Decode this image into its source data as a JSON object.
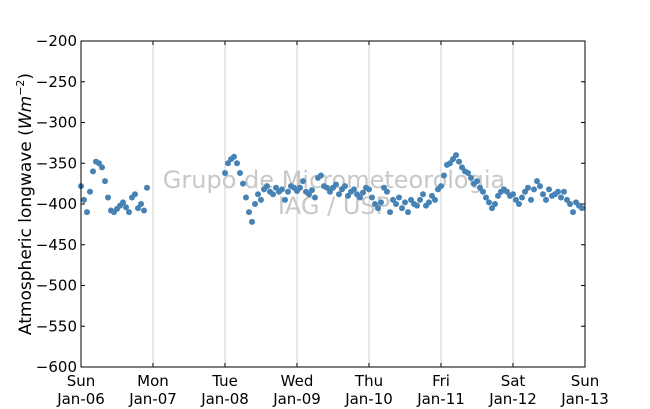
{
  "chart_data": {
    "type": "scatter",
    "title": "",
    "xlabel": "",
    "ylabel": "Atmospheric longwave (Wm⁻²)",
    "ylabel_parts": {
      "text": "Atmospheric longwave",
      "unit_open": "(",
      "unit_W": "W",
      "unit_m": "m",
      "unit_exp": "−2",
      "unit_close": ")"
    },
    "xlim": [
      "2013-01-06",
      "2013-01-13"
    ],
    "ylim": [
      -600,
      -200
    ],
    "y_ticks": [
      -600,
      -550,
      -500,
      -450,
      -400,
      -350,
      -300,
      -250,
      -200
    ],
    "y_tick_labels": [
      "−600",
      "−550",
      "−500",
      "−450",
      "−400",
      "−350",
      "−300",
      "−250",
      "−200"
    ],
    "x_ticks": [
      {
        "date": "2013-01-06",
        "day": "Sun",
        "date_label": "Jan-06"
      },
      {
        "date": "2013-01-07",
        "day": "Mon",
        "date_label": "Jan-07"
      },
      {
        "date": "2013-01-08",
        "day": "Tue",
        "date_label": "Jan-08"
      },
      {
        "date": "2013-01-09",
        "day": "Wed",
        "date_label": "Jan-09"
      },
      {
        "date": "2013-01-10",
        "day": "Thu",
        "date_label": "Jan-10"
      },
      {
        "date": "2013-01-11",
        "day": "Fri",
        "date_label": "Jan-11"
      },
      {
        "date": "2013-01-12",
        "day": "Sat",
        "date_label": "Jan-12"
      },
      {
        "date": "2013-01-13",
        "day": "Sun",
        "date_label": "Jan-13"
      }
    ],
    "grid": "vertical",
    "series": [
      {
        "color": "#4682b4",
        "points": [
          [
            "2013-01-06 00:00",
            -378
          ],
          [
            "2013-01-06 01:00",
            -395
          ],
          [
            "2013-01-06 02:00",
            -410
          ],
          [
            "2013-01-06 03:00",
            -385
          ],
          [
            "2013-01-06 04:00",
            -360
          ],
          [
            "2013-01-06 05:00",
            -348
          ],
          [
            "2013-01-06 06:00",
            -350
          ],
          [
            "2013-01-06 07:00",
            -355
          ],
          [
            "2013-01-06 08:00",
            -372
          ],
          [
            "2013-01-06 09:00",
            -392
          ],
          [
            "2013-01-06 10:00",
            -408
          ],
          [
            "2013-01-06 11:00",
            -410
          ],
          [
            "2013-01-06 12:00",
            -406
          ],
          [
            "2013-01-06 13:00",
            -402
          ],
          [
            "2013-01-06 14:00",
            -398
          ],
          [
            "2013-01-06 15:00",
            -404
          ],
          [
            "2013-01-06 16:00",
            -410
          ],
          [
            "2013-01-06 17:00",
            -392
          ],
          [
            "2013-01-06 18:00",
            -388
          ],
          [
            "2013-01-06 19:00",
            -405
          ],
          [
            "2013-01-06 20:00",
            -400
          ],
          [
            "2013-01-06 21:00",
            -408
          ],
          [
            "2013-01-06 22:00",
            -380
          ],
          [
            "2013-01-08 00:00",
            -362
          ],
          [
            "2013-01-08 01:00",
            -350
          ],
          [
            "2013-01-08 02:00",
            -345
          ],
          [
            "2013-01-08 03:00",
            -342
          ],
          [
            "2013-01-08 04:00",
            -350
          ],
          [
            "2013-01-08 05:00",
            -362
          ],
          [
            "2013-01-08 06:00",
            -375
          ],
          [
            "2013-01-08 07:00",
            -392
          ],
          [
            "2013-01-08 08:00",
            -410
          ],
          [
            "2013-01-08 09:00",
            -422
          ],
          [
            "2013-01-08 10:00",
            -400
          ],
          [
            "2013-01-08 11:00",
            -388
          ],
          [
            "2013-01-08 12:00",
            -395
          ],
          [
            "2013-01-08 13:00",
            -382
          ],
          [
            "2013-01-08 14:00",
            -378
          ],
          [
            "2013-01-08 15:00",
            -385
          ],
          [
            "2013-01-08 16:00",
            -388
          ],
          [
            "2013-01-08 17:00",
            -380
          ],
          [
            "2013-01-08 18:00",
            -385
          ],
          [
            "2013-01-08 19:00",
            -382
          ],
          [
            "2013-01-08 20:00",
            -395
          ],
          [
            "2013-01-08 21:00",
            -385
          ],
          [
            "2013-01-08 22:00",
            -378
          ],
          [
            "2013-01-08 23:00",
            -380
          ],
          [
            "2013-01-09 00:00",
            -384
          ],
          [
            "2013-01-09 01:00",
            -380
          ],
          [
            "2013-01-09 02:00",
            -372
          ],
          [
            "2013-01-09 03:00",
            -385
          ],
          [
            "2013-01-09 04:00",
            -388
          ],
          [
            "2013-01-09 05:00",
            -383
          ],
          [
            "2013-01-09 06:00",
            -392
          ],
          [
            "2013-01-09 07:00",
            -368
          ],
          [
            "2013-01-09 08:00",
            -365
          ],
          [
            "2013-01-09 09:00",
            -378
          ],
          [
            "2013-01-09 10:00",
            -380
          ],
          [
            "2013-01-09 11:00",
            -385
          ],
          [
            "2013-01-09 12:00",
            -380
          ],
          [
            "2013-01-09 13:00",
            -376
          ],
          [
            "2013-01-09 14:00",
            -388
          ],
          [
            "2013-01-09 15:00",
            -382
          ],
          [
            "2013-01-09 16:00",
            -378
          ],
          [
            "2013-01-09 17:00",
            -390
          ],
          [
            "2013-01-09 18:00",
            -385
          ],
          [
            "2013-01-09 19:00",
            -382
          ],
          [
            "2013-01-09 20:00",
            -388
          ],
          [
            "2013-01-09 21:00",
            -392
          ],
          [
            "2013-01-09 22:00",
            -386
          ],
          [
            "2013-01-09 23:00",
            -380
          ],
          [
            "2013-01-10 00:00",
            -382
          ],
          [
            "2013-01-10 01:00",
            -392
          ],
          [
            "2013-01-10 02:00",
            -400
          ],
          [
            "2013-01-10 03:00",
            -405
          ],
          [
            "2013-01-10 04:00",
            -398
          ],
          [
            "2013-01-10 05:00",
            -380
          ],
          [
            "2013-01-10 06:00",
            -385
          ],
          [
            "2013-01-10 07:00",
            -410
          ],
          [
            "2013-01-10 08:00",
            -395
          ],
          [
            "2013-01-10 09:00",
            -400
          ],
          [
            "2013-01-10 10:00",
            -392
          ],
          [
            "2013-01-10 11:00",
            -405
          ],
          [
            "2013-01-10 12:00",
            -398
          ],
          [
            "2013-01-10 13:00",
            -410
          ],
          [
            "2013-01-10 14:00",
            -395
          ],
          [
            "2013-01-10 15:00",
            -400
          ],
          [
            "2013-01-10 16:00",
            -402
          ],
          [
            "2013-01-10 17:00",
            -395
          ],
          [
            "2013-01-10 18:00",
            -388
          ],
          [
            "2013-01-10 19:00",
            -402
          ],
          [
            "2013-01-10 20:00",
            -398
          ],
          [
            "2013-01-10 21:00",
            -390
          ],
          [
            "2013-01-10 22:00",
            -395
          ],
          [
            "2013-01-10 23:00",
            -382
          ],
          [
            "2013-01-11 00:00",
            -378
          ],
          [
            "2013-01-11 01:00",
            -365
          ],
          [
            "2013-01-11 02:00",
            -352
          ],
          [
            "2013-01-11 03:00",
            -350
          ],
          [
            "2013-01-11 04:00",
            -345
          ],
          [
            "2013-01-11 05:00",
            -340
          ],
          [
            "2013-01-11 06:00",
            -348
          ],
          [
            "2013-01-11 07:00",
            -355
          ],
          [
            "2013-01-11 08:00",
            -360
          ],
          [
            "2013-01-11 09:00",
            -362
          ],
          [
            "2013-01-11 10:00",
            -368
          ],
          [
            "2013-01-11 11:00",
            -375
          ],
          [
            "2013-01-11 12:00",
            -372
          ],
          [
            "2013-01-11 13:00",
            -380
          ],
          [
            "2013-01-11 14:00",
            -385
          ],
          [
            "2013-01-11 15:00",
            -392
          ],
          [
            "2013-01-11 16:00",
            -398
          ],
          [
            "2013-01-11 17:00",
            -405
          ],
          [
            "2013-01-11 18:00",
            -400
          ],
          [
            "2013-01-11 19:00",
            -390
          ],
          [
            "2013-01-11 20:00",
            -385
          ],
          [
            "2013-01-11 21:00",
            -382
          ],
          [
            "2013-01-11 22:00",
            -385
          ],
          [
            "2013-01-11 23:00",
            -390
          ],
          [
            "2013-01-12 00:00",
            -388
          ],
          [
            "2013-01-12 01:00",
            -395
          ],
          [
            "2013-01-12 02:00",
            -400
          ],
          [
            "2013-01-12 03:00",
            -392
          ],
          [
            "2013-01-12 04:00",
            -385
          ],
          [
            "2013-01-12 05:00",
            -380
          ],
          [
            "2013-01-12 06:00",
            -395
          ],
          [
            "2013-01-12 07:00",
            -382
          ],
          [
            "2013-01-12 08:00",
            -372
          ],
          [
            "2013-01-12 09:00",
            -378
          ],
          [
            "2013-01-12 10:00",
            -388
          ],
          [
            "2013-01-12 11:00",
            -395
          ],
          [
            "2013-01-12 12:00",
            -382
          ],
          [
            "2013-01-12 13:00",
            -390
          ],
          [
            "2013-01-12 14:00",
            -388
          ],
          [
            "2013-01-12 15:00",
            -385
          ],
          [
            "2013-01-12 16:00",
            -392
          ],
          [
            "2013-01-12 17:00",
            -385
          ],
          [
            "2013-01-12 18:00",
            -395
          ],
          [
            "2013-01-12 19:00",
            -400
          ],
          [
            "2013-01-12 20:00",
            -410
          ],
          [
            "2013-01-12 21:00",
            -398
          ],
          [
            "2013-01-12 22:00",
            -402
          ],
          [
            "2013-01-12 23:00",
            -405
          ]
        ]
      }
    ]
  },
  "watermark": {
    "line1": "Grupo de Micrometeorologia",
    "line2": "IAG / USP"
  }
}
